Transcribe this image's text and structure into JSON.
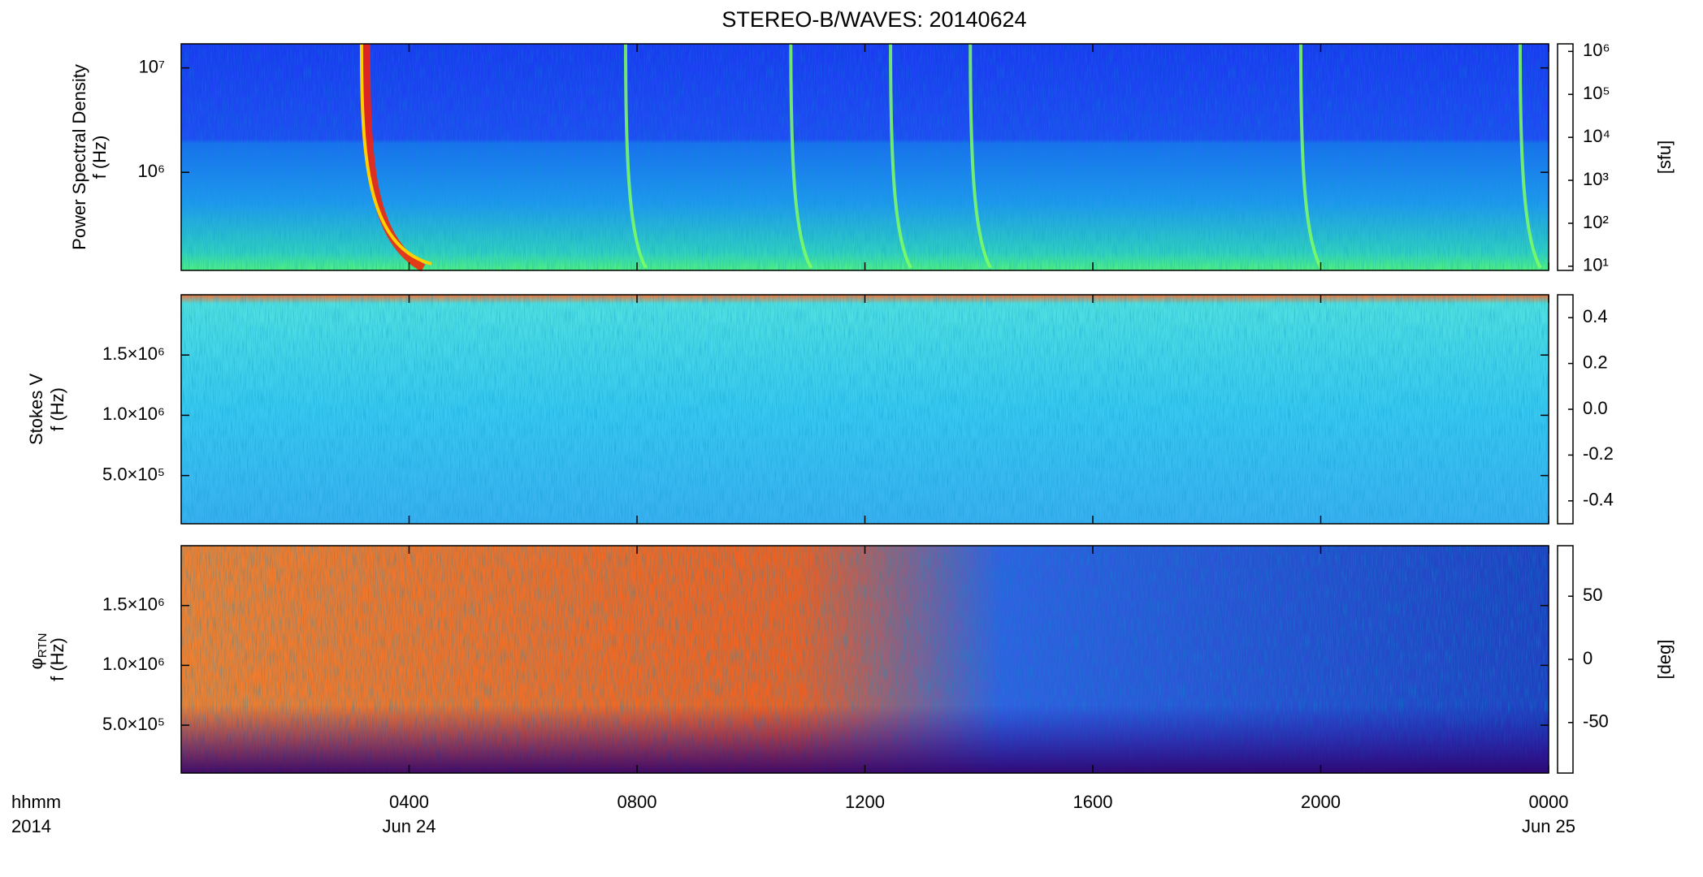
{
  "chart_data": [
    {
      "type": "spectrogram",
      "title": "STEREO-B/WAVES: 20140624",
      "ylabel": [
        "Power Spectral Density",
        "f (Hz)"
      ],
      "ylog": true,
      "ylim": [
        115000,
        17000000
      ],
      "yticks": [
        {
          "value": 1000000,
          "label": "10⁶"
        },
        {
          "value": 10000000,
          "label": "10⁷"
        }
      ],
      "xlim": [
        0,
        24
      ],
      "xticks": [
        {
          "value": 4,
          "label": "0400"
        },
        {
          "value": 8,
          "label": "0800"
        },
        {
          "value": 12,
          "label": "1200"
        },
        {
          "value": 16,
          "label": "1600"
        },
        {
          "value": 20,
          "label": "2000"
        },
        {
          "value": 24,
          "label": "0000"
        }
      ],
      "bursts": [
        3.25,
        7.8,
        10.7,
        12.45,
        13.85,
        19.65,
        23.5
      ],
      "colorbar": {
        "log": true,
        "lim": [
          8,
          1500000
        ],
        "label": "[sfu]",
        "ticks": [
          {
            "value": 10,
            "label": "10¹"
          },
          {
            "value": 100,
            "label": "10²"
          },
          {
            "value": 1000,
            "label": "10³"
          },
          {
            "value": 10000,
            "label": "10⁴"
          },
          {
            "value": 100000,
            "label": "10⁵"
          },
          {
            "value": 1000000,
            "label": "10⁶"
          }
        ]
      }
    },
    {
      "type": "spectrogram",
      "ylabel": [
        "Stokes V",
        "f (Hz)"
      ],
      "ylog": false,
      "ylim": [
        100000,
        2000000
      ],
      "yticks": [
        {
          "value": 500000,
          "label": "5.0×10⁵"
        },
        {
          "value": 1000000,
          "label": "1.0×10⁶"
        },
        {
          "value": 1500000,
          "label": "1.5×10⁶"
        }
      ],
      "xlim": [
        0,
        24
      ],
      "xticks": [
        {
          "value": 4,
          "label": "0400"
        },
        {
          "value": 8,
          "label": "0800"
        },
        {
          "value": 12,
          "label": "1200"
        },
        {
          "value": 16,
          "label": "1600"
        },
        {
          "value": 20,
          "label": "2000"
        },
        {
          "value": 24,
          "label": "0000"
        }
      ],
      "colorbar": {
        "log": false,
        "lim": [
          -0.5,
          0.5
        ],
        "ticks": [
          -0.4,
          -0.2,
          {
            "value": 0,
            "label": "0.0"
          },
          0.2,
          0.4
        ]
      }
    },
    {
      "type": "spectrogram",
      "ylabel_symbol": "φ",
      "ylabel_subscript": "RTN",
      "ylabel": [
        "f (Hz)"
      ],
      "ylog": false,
      "ylim": [
        100000,
        2000000
      ],
      "yticks": [
        {
          "value": 500000,
          "label": "5.0×10⁵"
        },
        {
          "value": 1000000,
          "label": "1.0×10⁶"
        },
        {
          "value": 1500000,
          "label": "1.5×10⁶"
        }
      ],
      "xlim": [
        0,
        24
      ],
      "xticks": [
        {
          "value": 4,
          "label": "0400"
        },
        {
          "value": 8,
          "label": "0800"
        },
        {
          "value": 12,
          "label": "1200"
        },
        {
          "value": 16,
          "label": "1600"
        },
        {
          "value": 20,
          "label": "2000"
        },
        {
          "value": 24,
          "label": "0000"
        }
      ],
      "xlabel": [
        "hhmm",
        "2014"
      ],
      "xdates": [
        {
          "value": 4,
          "label": "Jun 24"
        },
        {
          "value": 24,
          "label": "Jun 25"
        }
      ],
      "colorbar": {
        "log": false,
        "lim": [
          -90,
          90
        ],
        "label": "[deg]",
        "ticks": [
          -50,
          0,
          50
        ]
      }
    }
  ]
}
